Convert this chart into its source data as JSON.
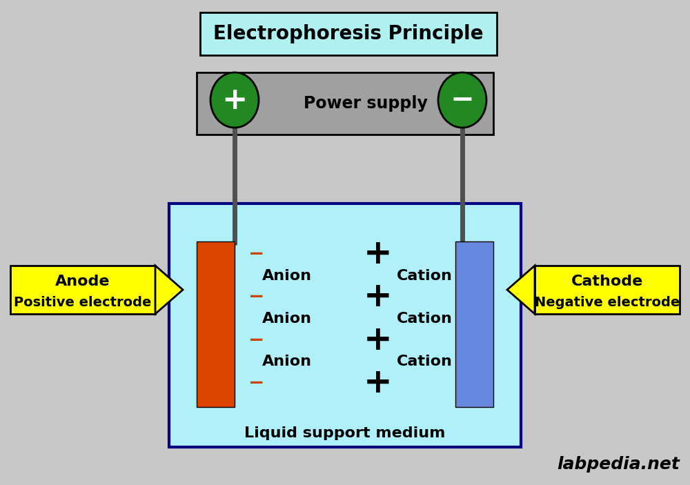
{
  "title": "Electrophoresis Principle",
  "background_color": "#c8c8c8",
  "title_box_color": "#b0f0f0",
  "title_border_color": "#000000",
  "power_supply_box_color": "#a0a0a0",
  "power_supply_border_color": "#000000",
  "power_supply_label": "Power supply",
  "plus_circle_color": "#228822",
  "minus_circle_color": "#228822",
  "wire_color": "#505050",
  "tank_fill_color": "#b0f0f8",
  "tank_border_color": "#000080",
  "anode_color": "#dd4400",
  "cathode_color": "#6688dd",
  "label_box_color": "#ffff00",
  "label_border_color": "#000000",
  "anode_label_line1": "Anode",
  "anode_label_line2": "Positive electrode",
  "cathode_label_line1": "Cathode",
  "cathode_label_line2": "Negative electrode",
  "liquid_label": "Liquid support medium",
  "watermark": "labpedia.net",
  "red_minus_color": "#cc4400",
  "anion_labels": [
    "Anion",
    "Anion",
    "Anion"
  ],
  "cation_labels": [
    "Cation",
    "Cation",
    "Cation"
  ]
}
